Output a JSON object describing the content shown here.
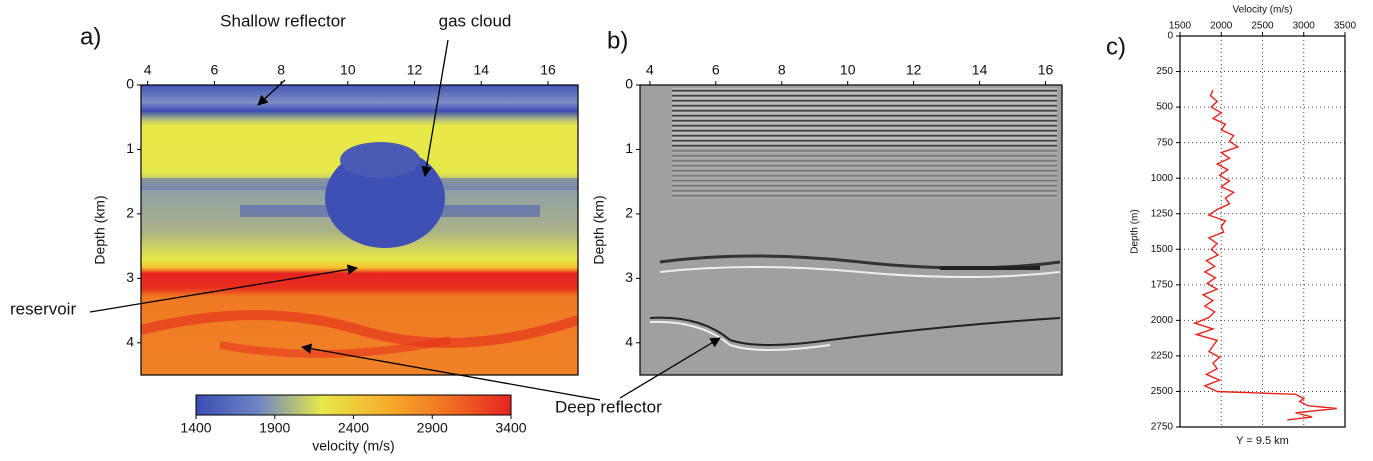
{
  "chart_data": [
    {
      "type": "heatmap",
      "panel_label": "a)",
      "ylabel": "Depth (km)",
      "xlim": [
        3.8,
        16.9
      ],
      "xticks": [
        4,
        6,
        8,
        10,
        12,
        14,
        16
      ],
      "ylim": [
        0,
        4.5
      ],
      "yticks": [
        0,
        1,
        2,
        3,
        4
      ],
      "grid": false,
      "annotations": [
        "Shallow reflector",
        "gas cloud",
        "reservoir",
        "Deep reflector"
      ],
      "colorbar": {
        "label": "velocity (m/s)",
        "lim": [
          1400,
          3400
        ],
        "ticks": [
          1400,
          1900,
          2400,
          2900,
          3400
        ],
        "colors": [
          "#3b4cb4",
          "#6f86c4",
          "#e6e84a",
          "#f6b02c",
          "#f07023",
          "#e52421"
        ]
      }
    },
    {
      "type": "image",
      "panel_label": "b)",
      "ylabel": "Depth (km)",
      "xlim": [
        3.7,
        16.5
      ],
      "xticks": [
        4,
        6,
        8,
        10,
        12,
        14,
        16
      ],
      "ylim": [
        0,
        4.5
      ],
      "yticks": [
        0,
        1,
        2,
        3,
        4
      ],
      "grid": false
    },
    {
      "type": "line",
      "panel_label": "c)",
      "xlabel": "Velocity (m/s)",
      "ylabel": "Depth (m)",
      "caption": "Y = 9.5 km",
      "xlim": [
        1500,
        3500
      ],
      "xticks": [
        1500,
        2000,
        2500,
        3000,
        3500
      ],
      "ylim": [
        0,
        2750
      ],
      "yticks": [
        0,
        250,
        500,
        750,
        1000,
        1250,
        1500,
        1750,
        2000,
        2250,
        2500,
        2750
      ],
      "grid": true,
      "color": "#e8231e",
      "x": [
        1900,
        1870,
        1950,
        1880,
        2000,
        1900,
        2050,
        2000,
        2150,
        2100,
        2200,
        2000,
        2100,
        1950,
        2080,
        1980,
        2100,
        2000,
        2150,
        2050,
        2100,
        1950,
        1850,
        2050,
        2000,
        2030,
        1850,
        1950,
        1880,
        1960,
        1820,
        1920,
        1800,
        1930,
        1830,
        1950,
        1780,
        1900,
        1800,
        1920,
        1850,
        1680,
        1900,
        1700,
        1950,
        1900,
        1850,
        1980,
        1900,
        1950,
        1820,
        1980,
        1800,
        1950,
        2900,
        3000,
        2950,
        3050,
        3400,
        2900,
        3100,
        2800
      ],
      "values": [
        380,
        420,
        460,
        500,
        540,
        580,
        620,
        660,
        700,
        740,
        780,
        820,
        860,
        900,
        940,
        980,
        1020,
        1060,
        1100,
        1140,
        1180,
        1220,
        1260,
        1300,
        1340,
        1380,
        1420,
        1460,
        1500,
        1540,
        1580,
        1620,
        1660,
        1700,
        1740,
        1780,
        1820,
        1860,
        1900,
        1940,
        1980,
        2020,
        2060,
        2100,
        2140,
        2180,
        2220,
        2260,
        2300,
        2340,
        2380,
        2420,
        2460,
        2500,
        2520,
        2550,
        2570,
        2600,
        2620,
        2650,
        2680,
        2700
      ]
    }
  ]
}
